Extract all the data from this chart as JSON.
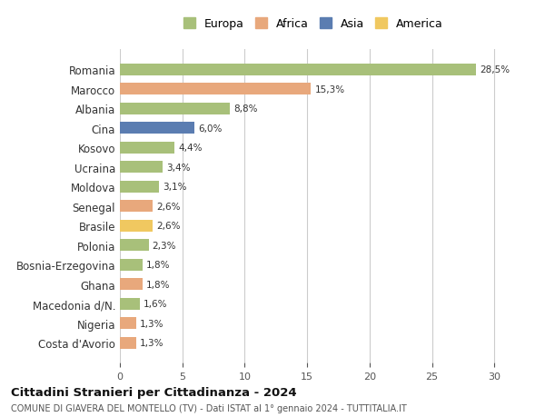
{
  "countries": [
    "Romania",
    "Marocco",
    "Albania",
    "Cina",
    "Kosovo",
    "Ucraina",
    "Moldova",
    "Senegal",
    "Brasile",
    "Polonia",
    "Bosnia-Erzegovina",
    "Ghana",
    "Macedonia d/N.",
    "Nigeria",
    "Costa d'Avorio"
  ],
  "values": [
    28.5,
    15.3,
    8.8,
    6.0,
    4.4,
    3.4,
    3.1,
    2.6,
    2.6,
    2.3,
    1.8,
    1.8,
    1.6,
    1.3,
    1.3
  ],
  "labels": [
    "28,5%",
    "15,3%",
    "8,8%",
    "6,0%",
    "4,4%",
    "3,4%",
    "3,1%",
    "2,6%",
    "2,6%",
    "2,3%",
    "1,8%",
    "1,8%",
    "1,6%",
    "1,3%",
    "1,3%"
  ],
  "continents": [
    "Europa",
    "Africa",
    "Europa",
    "Asia",
    "Europa",
    "Europa",
    "Europa",
    "Africa",
    "America",
    "Europa",
    "Europa",
    "Africa",
    "Europa",
    "Africa",
    "Africa"
  ],
  "continent_colors": {
    "Europa": "#a8c07a",
    "Africa": "#e8a87c",
    "Asia": "#5b7db1",
    "America": "#f0c860"
  },
  "legend_order": [
    "Europa",
    "Africa",
    "Asia",
    "America"
  ],
  "title": "Cittadini Stranieri per Cittadinanza - 2024",
  "subtitle": "COMUNE DI GIAVERA DEL MONTELLO (TV) - Dati ISTAT al 1° gennaio 2024 - TUTTITALIA.IT",
  "xlim": [
    0,
    31
  ],
  "xticks": [
    0,
    5,
    10,
    15,
    20,
    25,
    30
  ],
  "bg_color": "#ffffff",
  "grid_color": "#cccccc",
  "bar_height": 0.6
}
